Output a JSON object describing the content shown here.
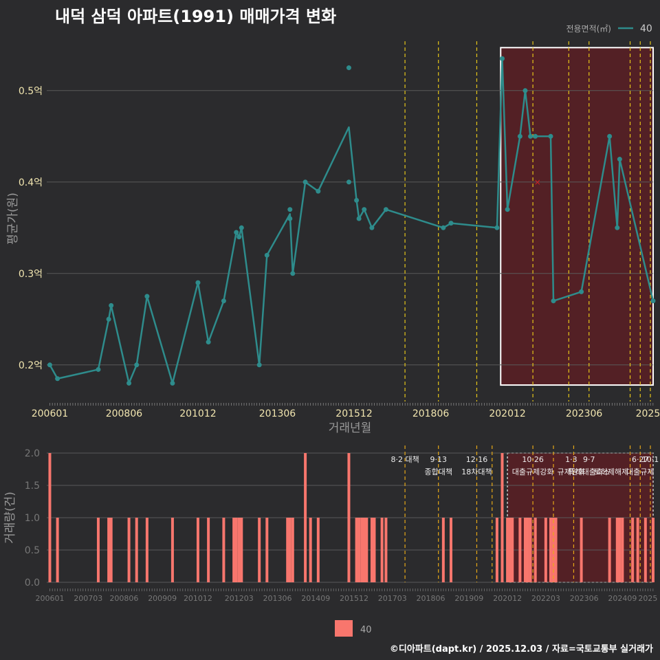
{
  "title": "내덕 삼덕 아파트(1991) 매매가격 변화",
  "credit": "©디아파트(dapt.kr) / 2025.12.03 / 자료=국토교통부 실거래가",
  "colors": {
    "background": "#2b2b2d",
    "series": "#2e8c8c",
    "bar": "#f8766d",
    "policy_line": "#e6c619",
    "highlight_fill": "#5a1f24",
    "grid": "#5a5a5a",
    "title": "#ffffff",
    "axis_text_top": "#f2e6b0",
    "axis_text_bottom": "#777777",
    "outlier_mark": "#cc2222"
  },
  "chart_data": [
    {
      "type": "line",
      "title": "내덕 삼덕 아파트(1991) 매매가격 변화",
      "xlabel": "거래년월",
      "ylabel": "평균가(원)",
      "legend": {
        "title": "전용면적(㎡)",
        "entries": [
          "40"
        ],
        "position": "top-right"
      },
      "ylim": [
        0.16,
        0.56
      ],
      "xlim": [
        2005.9,
        2025.67
      ],
      "yticks": [
        0.2,
        0.3,
        0.4,
        0.5
      ],
      "yticklabels": [
        "0.2억",
        "0.3억",
        "0.4억",
        "0.5억"
      ],
      "xticks": [
        2006.0,
        2008.42,
        2010.83,
        2013.42,
        2015.92,
        2018.42,
        2020.92,
        2023.42,
        2025.5
      ],
      "xticklabels": [
        "200601",
        "200806",
        "201012",
        "201306",
        "201512",
        "201806",
        "202012",
        "202306",
        "2025"
      ],
      "series": [
        {
          "name": "40",
          "x": [
            2006.0,
            2006.25,
            2007.58,
            2007.92,
            2008.0,
            2008.58,
            2008.83,
            2009.17,
            2010.0,
            2010.83,
            2011.17,
            2011.67,
            2012.08,
            2012.17,
            2012.25,
            2012.83,
            2013.08,
            2013.83,
            2013.92,
            2014.33,
            2014.75,
            2015.75,
            2016.0,
            2016.08,
            2016.25,
            2016.5,
            2016.96,
            2018.83,
            2019.08,
            2020.58,
            2020.75,
            2020.92,
            2021.33,
            2021.5,
            2021.67,
            2021.83,
            2022.33,
            2022.42,
            2023.33,
            2024.25,
            2024.5,
            2024.58,
            2025.67
          ],
          "values": [
            0.2,
            0.185,
            0.195,
            0.25,
            0.265,
            0.18,
            0.2,
            0.275,
            0.18,
            0.29,
            0.225,
            0.27,
            0.345,
            0.34,
            0.35,
            0.2,
            0.32,
            0.365,
            0.3,
            0.4,
            0.39,
            0.46,
            0.38,
            0.36,
            0.37,
            0.35,
            0.37,
            0.35,
            0.355,
            0.35,
            0.535,
            0.37,
            0.45,
            0.5,
            0.45,
            0.45,
            0.45,
            0.27,
            0.28,
            0.45,
            0.35,
            0.425,
            0.27
          ]
        }
      ],
      "points": {
        "x": [
          2006.0,
          2006.25,
          2007.58,
          2007.92,
          2008.0,
          2008.58,
          2008.83,
          2009.17,
          2010.0,
          2010.83,
          2011.17,
          2011.67,
          2012.08,
          2012.17,
          2012.25,
          2012.83,
          2013.08,
          2013.83,
          2013.83,
          2013.92,
          2014.33,
          2014.75,
          2015.75,
          2015.75,
          2016.0,
          2016.08,
          2016.25,
          2016.5,
          2016.96,
          2018.83,
          2019.08,
          2020.58,
          2020.75,
          2020.92,
          2021.33,
          2021.5,
          2021.67,
          2021.83,
          2022.33,
          2022.42,
          2023.33,
          2024.25,
          2024.5,
          2024.58,
          2025.67
        ],
        "values": [
          0.2,
          0.185,
          0.195,
          0.25,
          0.265,
          0.18,
          0.2,
          0.275,
          0.18,
          0.29,
          0.225,
          0.27,
          0.345,
          0.34,
          0.35,
          0.2,
          0.32,
          0.36,
          0.37,
          0.3,
          0.4,
          0.39,
          0.525,
          0.4,
          0.38,
          0.36,
          0.37,
          0.35,
          0.37,
          0.35,
          0.355,
          0.35,
          0.535,
          0.37,
          0.45,
          0.5,
          0.45,
          0.45,
          0.45,
          0.27,
          0.28,
          0.45,
          0.35,
          0.425,
          0.27
        ]
      },
      "outlier": {
        "x": 2021.9,
        "value": 0.4
      },
      "highlight": {
        "x_start": 2020.7,
        "x_end": 2025.67,
        "y_start": 0.178,
        "y_end": 0.547
      },
      "policy_lines": [
        2017.58,
        2018.67,
        2019.92,
        2021.75,
        2022.92,
        2023.58,
        2024.92,
        2025.25,
        2025.58
      ]
    },
    {
      "type": "bar",
      "xlabel": "",
      "ylabel": "거래량(건)",
      "ylim": [
        0,
        2
      ],
      "xlim": [
        2005.9,
        2025.67
      ],
      "yticks": [
        0.0,
        0.5,
        1.0,
        1.5,
        2.0
      ],
      "yticklabels": [
        "0.0",
        "0.5",
        "1.0",
        "1.5",
        "2.0"
      ],
      "xticks": [
        2006.0,
        2007.25,
        2008.42,
        2009.67,
        2010.83,
        2012.17,
        2013.42,
        2014.67,
        2015.92,
        2017.17,
        2018.42,
        2019.67,
        2020.92,
        2022.17,
        2023.42,
        2024.67,
        2025.5
      ],
      "xticklabels": [
        "200601",
        "200703",
        "200806",
        "200909",
        "201012",
        "201203",
        "201306",
        "201409",
        "201512",
        "201703",
        "201806",
        "201909",
        "202012",
        "202203",
        "202306",
        "202409",
        "2025"
      ],
      "legend": {
        "entries": [
          "40"
        ],
        "position": "bottom"
      },
      "series": [
        {
          "name": "40",
          "x": [
            2006.0,
            2006.25,
            2007.58,
            2007.92,
            2008.0,
            2008.58,
            2008.83,
            2009.17,
            2010.0,
            2010.83,
            2011.17,
            2011.67,
            2012.0,
            2012.08,
            2012.17,
            2012.25,
            2012.83,
            2013.08,
            2013.75,
            2013.83,
            2013.92,
            2014.33,
            2014.5,
            2014.75,
            2015.75,
            2016.0,
            2016.08,
            2016.17,
            2016.25,
            2016.33,
            2016.5,
            2016.58,
            2016.83,
            2016.96,
            2018.83,
            2019.08,
            2020.58,
            2020.75,
            2020.92,
            2021.0,
            2021.08,
            2021.33,
            2021.5,
            2021.58,
            2021.67,
            2021.83,
            2022.17,
            2022.33,
            2022.42,
            2022.5,
            2023.33,
            2024.25,
            2024.5,
            2024.58,
            2024.67,
            2025.0,
            2025.17,
            2025.42,
            2025.67
          ],
          "values": [
            2,
            1,
            1,
            1,
            1,
            1,
            1,
            1,
            1,
            1,
            1,
            1,
            1,
            1,
            1,
            1,
            1,
            1,
            1,
            1,
            1,
            2,
            1,
            1,
            2,
            1,
            1,
            1,
            1,
            1,
            1,
            1,
            1,
            1,
            1,
            1,
            1,
            2,
            1,
            1,
            1,
            1,
            1,
            1,
            1,
            1,
            1,
            1,
            1,
            1,
            1,
            1,
            1,
            1,
            1,
            1,
            1,
            1,
            1
          ]
        }
      ],
      "highlight": {
        "x_start": 2020.92,
        "x_end": 2025.67,
        "y_start": 0.0,
        "y_end": 2.0
      },
      "policy_lines": [
        2017.58,
        2018.67,
        2019.92,
        2020.42,
        2021.75,
        2022.42,
        2023.08,
        2024.92,
        2025.25,
        2025.58
      ],
      "annotations": [
        {
          "x": 2017.58,
          "date": "8·2 대책",
          "name": ""
        },
        {
          "x": 2018.67,
          "date": "9·13",
          "name": "종합대책"
        },
        {
          "x": 2019.92,
          "date": "12·16",
          "name": "18차대책"
        },
        {
          "x": 2021.75,
          "date": "10·26",
          "name": "대출규제강화"
        },
        {
          "x": 2023.0,
          "date": "1·3",
          "name": "규제완화"
        },
        {
          "x": 2023.58,
          "date": "9·7",
          "name": "특례대출축소"
        },
        {
          "x": 2024.3,
          "date": "",
          "name": "토허제해제"
        },
        {
          "x": 2025.25,
          "date": "6·27",
          "name": "대출규제"
        },
        {
          "x": 2025.58,
          "date": "10·1",
          "name": ""
        }
      ]
    }
  ]
}
